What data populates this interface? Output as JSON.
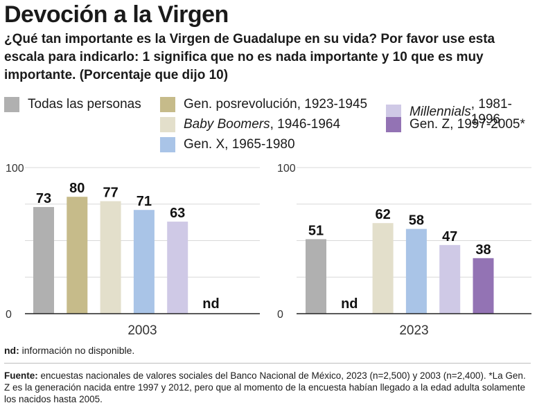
{
  "title": "Devoción a la Virgen",
  "subtitle": "¿Qué tan importante es la Virgen de Guadalupe en su vida? Por favor use esta escala para indicarlo: 1 significa que no es nada importante y 10 que es muy importante. (Porcentaje que dijo 10)",
  "legend": [
    {
      "name": "Todas las personas",
      "name_italic": "",
      "name_rest": "",
      "color": "#b0b0b0"
    },
    {
      "name": "Gen. posrevolución, 1923-1945",
      "name_italic": "",
      "name_rest": "",
      "color": "#c6bb8a"
    },
    {
      "name": "",
      "name_italic": "Millennials",
      "name_rest": ", 1981-1996",
      "color": "#cfc9e6"
    },
    {
      "name": "",
      "name_italic": "Baby Boomers",
      "name_rest": ", 1946-1964",
      "color": "#e3dfcb"
    },
    {
      "name": "Gen. Z, 1997-2005*",
      "name_italic": "",
      "name_rest": "",
      "color": "#9373b4"
    },
    {
      "name": "Gen. X, 1965-1980",
      "name_italic": "",
      "name_rest": "",
      "color": "#a9c4e7"
    }
  ],
  "chart_data": {
    "type": "bar",
    "ylim": [
      0,
      100
    ],
    "yticks": [
      "0",
      "100"
    ],
    "series_order": [
      "Todas las personas",
      "Gen. posrevolución, 1923-1945",
      "Baby Boomers, 1946-1964",
      "Gen. X, 1965-1980",
      "Millennials, 1981-1996",
      "Gen. Z, 1997-2005*"
    ],
    "colors": [
      "#b0b0b0",
      "#c6bb8a",
      "#e3dfcb",
      "#a9c4e7",
      "#cfc9e6",
      "#9373b4"
    ],
    "panels": [
      {
        "category": "2003",
        "values": [
          73,
          80,
          77,
          71,
          63,
          null
        ],
        "labels": [
          "73",
          "80",
          "77",
          "71",
          "63",
          "nd"
        ]
      },
      {
        "category": "2023",
        "values": [
          51,
          null,
          62,
          58,
          47,
          38
        ],
        "labels": [
          "51",
          "nd",
          "62",
          "58",
          "47",
          "38"
        ]
      }
    ],
    "grid": true
  },
  "note": {
    "label": "nd:",
    "text": " información no disponible."
  },
  "source": {
    "label": "Fuente:",
    "text": " encuestas nacionales de valores sociales del Banco Nacional de México, 2023 (n=2,500) y 2003 (n=2,400). *La Gen. Z es la generación nacida entre 1997 y 2012, pero que al momento de la encuesta habían llegado a la edad adulta solamente los nacidos hasta 2005."
  }
}
